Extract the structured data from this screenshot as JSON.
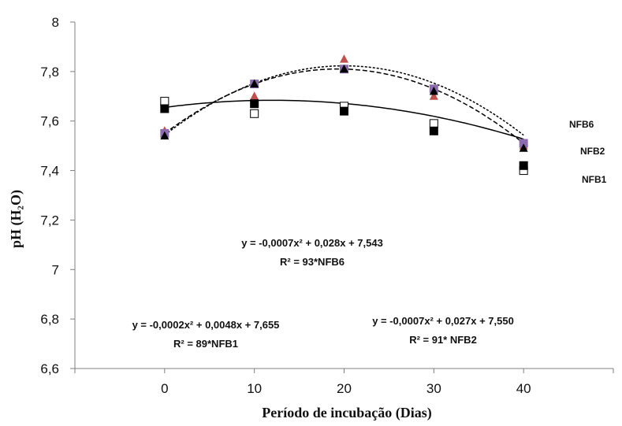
{
  "chart_data": {
    "type": "scatter",
    "xlabel": "Período de incubação (Dias)",
    "ylabel": "pH (H₂O)",
    "xlim": [
      -10,
      50
    ],
    "ylim": [
      6.6,
      8.0
    ],
    "x_ticks": [
      "0",
      "10",
      "20",
      "30",
      "40"
    ],
    "y_ticks": [
      "6,6",
      "6,8",
      "7",
      "7,2",
      "7,4",
      "7,6",
      "7,8",
      "8"
    ],
    "grid": false,
    "series": [
      {
        "name": "NFB1",
        "x": [
          0,
          10,
          20,
          30,
          40
        ],
        "y": [
          7.65,
          7.67,
          7.64,
          7.56,
          7.42
        ],
        "y_alt": [
          7.68,
          7.63,
          7.66,
          7.59,
          7.4
        ],
        "fit": [
          -0.0002,
          0.0048,
          7.655
        ],
        "equation": "y = -0,0002x² + 0,0048x + 7,655",
        "r2": "R² = 89*NFB1",
        "color": "#000000"
      },
      {
        "name": "NFB2",
        "x": [
          0,
          10,
          20,
          30,
          40
        ],
        "y": [
          7.54,
          7.75,
          7.81,
          7.72,
          7.49
        ],
        "fit": [
          -0.0007,
          0.027,
          7.55
        ],
        "equation": "y = -0,0007x² + 0,027x + 7,550",
        "r2": "R² = 91* NFB2",
        "color": "#000000"
      },
      {
        "name": "NFB6",
        "x": [
          0,
          10,
          20,
          30,
          40
        ],
        "y": [
          7.55,
          7.75,
          7.81,
          7.73,
          7.51
        ],
        "y_alt": [
          7.56,
          7.7,
          7.85,
          7.7,
          7.5
        ],
        "fit": [
          -0.0007,
          0.028,
          7.543
        ],
        "equation": "y = -0,0007x² + 0,028x + 7,543",
        "r2": "R² = 93*NFB6",
        "color": "#8e6bb0",
        "alt_color": "#c0504d"
      }
    ]
  }
}
